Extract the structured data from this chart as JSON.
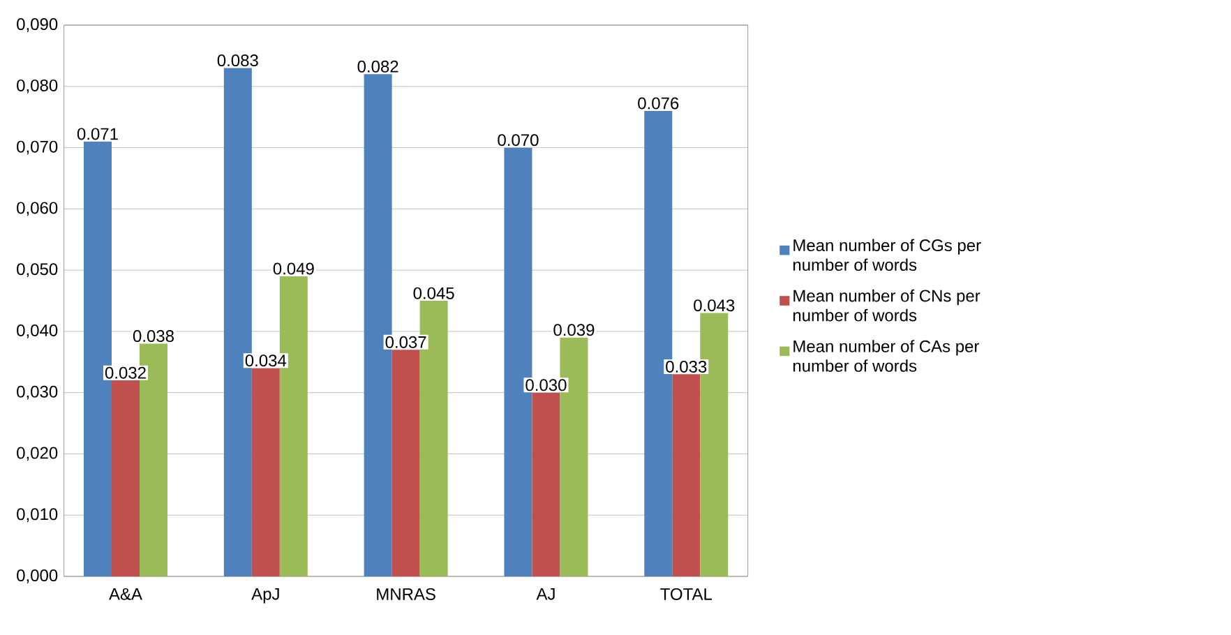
{
  "chart_data": {
    "type": "bar",
    "categories": [
      "A&A",
      "ApJ",
      "MNRAS",
      "AJ",
      "TOTAL"
    ],
    "series": [
      {
        "name": "Mean number of CGs per number of words",
        "color": "#4f81bd",
        "values": [
          0.071,
          0.083,
          0.082,
          0.07,
          0.076
        ],
        "value_labels": [
          "0.071",
          "0.083",
          "0.082",
          "0.070",
          "0.076"
        ]
      },
      {
        "name": "Mean number of CNs per number of words",
        "color": "#c0504d",
        "values": [
          0.032,
          0.034,
          0.037,
          0.03,
          0.033
        ],
        "value_labels": [
          "0.032",
          "0.034",
          "0.037",
          "0.030",
          "0.033"
        ]
      },
      {
        "name": "Mean number of CAs per number of words",
        "color": "#9bbb59",
        "values": [
          0.038,
          0.049,
          0.045,
          0.039,
          0.043
        ],
        "value_labels": [
          "0.038",
          "0.049",
          "0.045",
          "0.039",
          "0.043"
        ]
      }
    ],
    "ylim": [
      0,
      0.09
    ],
    "yticks": [
      {
        "value": 0,
        "label": "0,000"
      },
      {
        "value": 0.01,
        "label": "0,010"
      },
      {
        "value": 0.02,
        "label": "0,020"
      },
      {
        "value": 0.03,
        "label": "0,030"
      },
      {
        "value": 0.04,
        "label": "0,040"
      },
      {
        "value": 0.05,
        "label": "0,050"
      },
      {
        "value": 0.06,
        "label": "0,060"
      },
      {
        "value": 0.07,
        "label": "0,070"
      },
      {
        "value": 0.08,
        "label": "0,080"
      },
      {
        "value": 0.09,
        "label": "0,090"
      }
    ],
    "grid": "y",
    "legend": "right"
  }
}
